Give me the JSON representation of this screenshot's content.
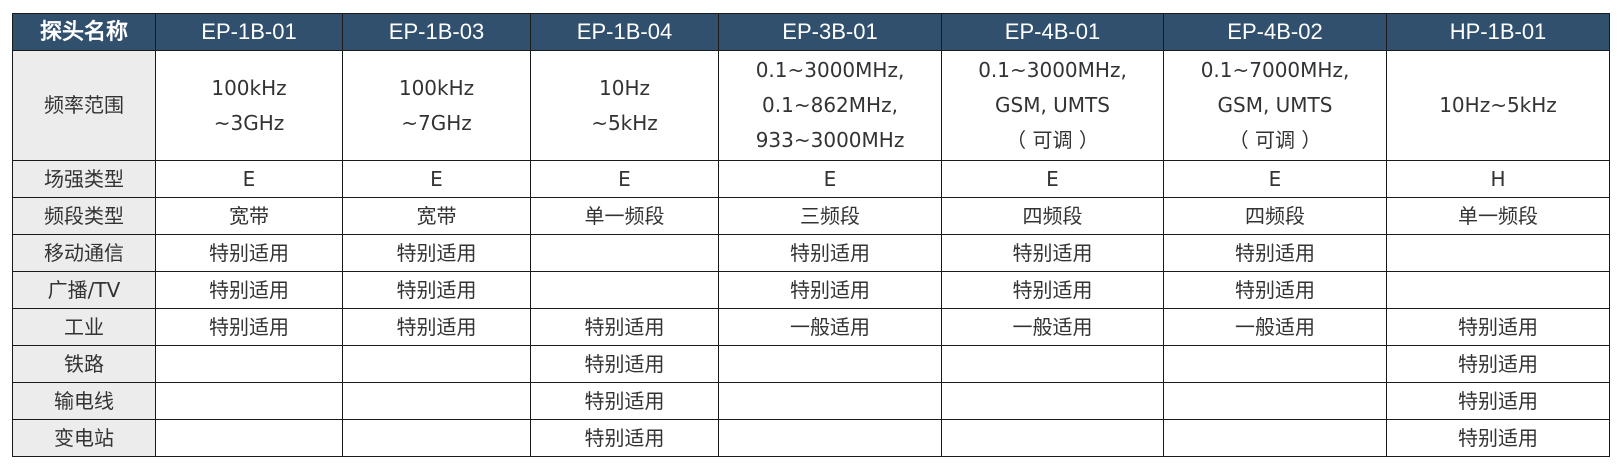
{
  "colors": {
    "header_bg": "#30506e",
    "header_text": "#ffffff",
    "label_bg": "#ececec"
  },
  "header": [
    "探头名称",
    "EP-1B-01",
    "EP-1B-03",
    "EP-1B-04",
    "EP-3B-01",
    "EP-4B-01",
    "EP-4B-02",
    "HP-1B-01"
  ],
  "freq": {
    "label": "频率范围",
    "cells": [
      [
        "100kHz",
        "~3GHz"
      ],
      [
        "100kHz",
        "~7GHz"
      ],
      [
        "10Hz",
        "~5kHz"
      ],
      [
        "0.1~3000MHz,",
        "0.1~862MHz,",
        "933~3000MHz"
      ],
      [
        "0.1~3000MHz,",
        "GSM, UMTS",
        "（ 可调 ）"
      ],
      [
        "0.1~7000MHz,",
        "GSM, UMTS",
        "（ 可调 ）"
      ],
      [
        "10Hz~5kHz"
      ]
    ]
  },
  "rows": [
    {
      "label": "场强类型",
      "cells": [
        "E",
        "E",
        "E",
        "E",
        "E",
        "E",
        "H"
      ]
    },
    {
      "label": "频段类型",
      "cells": [
        "宽带",
        "宽带",
        "单一频段",
        "三频段",
        "四频段",
        "四频段",
        "单一频段"
      ]
    },
    {
      "label": "移动通信",
      "cells": [
        "特别适用",
        "特别适用",
        "",
        "特别适用",
        "特别适用",
        "特别适用",
        ""
      ]
    },
    {
      "label": "广播/TV",
      "cells": [
        "特别适用",
        "特别适用",
        "",
        "特别适用",
        "特别适用",
        "特别适用",
        ""
      ]
    },
    {
      "label": "工业",
      "cells": [
        "特别适用",
        "特别适用",
        "特别适用",
        "一般适用",
        "一般适用",
        "一般适用",
        "特别适用"
      ]
    },
    {
      "label": "铁路",
      "cells": [
        "",
        "",
        "特别适用",
        "",
        "",
        "",
        "特别适用"
      ]
    },
    {
      "label": "输电线",
      "cells": [
        "",
        "",
        "特别适用",
        "",
        "",
        "",
        "特别适用"
      ]
    },
    {
      "label": "变电站",
      "cells": [
        "",
        "",
        "特别适用",
        "",
        "",
        "",
        "特别适用"
      ]
    }
  ]
}
